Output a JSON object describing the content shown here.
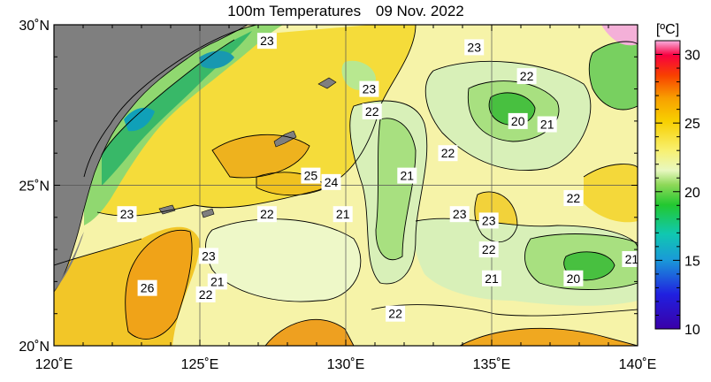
{
  "chart_data": {
    "type": "heatmap",
    "title": "100m Temperatures",
    "date": "09 Nov. 2022",
    "x_ticks": [
      "120˚E",
      "125˚E",
      "130˚E",
      "135˚E",
      "140˚E"
    ],
    "x_tick_values": [
      120,
      125,
      130,
      135,
      140
    ],
    "y_ticks": [
      "30˚N",
      "25˚N",
      "20˚N"
    ],
    "y_tick_values": [
      30,
      25,
      20
    ],
    "xlim": [
      120,
      140
    ],
    "ylim": [
      20,
      30
    ],
    "grid": true,
    "colorbar": {
      "unit_label": "[ºC]",
      "ticks": [
        "30",
        "25",
        "20",
        "15",
        "10"
      ],
      "tick_values": [
        30,
        25,
        20,
        15,
        10
      ],
      "range": [
        10,
        31
      ]
    },
    "land_color": "#808080",
    "contour_labels": [
      {
        "text": "23",
        "lon": 127.3,
        "lat": 29.5
      },
      {
        "text": "23",
        "lon": 134.4,
        "lat": 29.3
      },
      {
        "text": "22",
        "lon": 136.2,
        "lat": 28.4
      },
      {
        "text": "23",
        "lon": 130.8,
        "lat": 28.0
      },
      {
        "text": "22",
        "lon": 130.9,
        "lat": 27.3
      },
      {
        "text": "20",
        "lon": 135.9,
        "lat": 27.0
      },
      {
        "text": "21",
        "lon": 136.9,
        "lat": 26.9
      },
      {
        "text": "22",
        "lon": 133.5,
        "lat": 26.0
      },
      {
        "text": "21",
        "lon": 132.1,
        "lat": 25.3
      },
      {
        "text": "25",
        "lon": 128.8,
        "lat": 25.3
      },
      {
        "text": "24",
        "lon": 129.5,
        "lat": 25.1
      },
      {
        "text": "22",
        "lon": 137.8,
        "lat": 24.6
      },
      {
        "text": "23",
        "lon": 122.5,
        "lat": 24.1
      },
      {
        "text": "22",
        "lon": 127.3,
        "lat": 24.1
      },
      {
        "text": "21",
        "lon": 129.9,
        "lat": 24.1
      },
      {
        "text": "23",
        "lon": 133.9,
        "lat": 24.1
      },
      {
        "text": "23",
        "lon": 134.9,
        "lat": 23.9
      },
      {
        "text": "22",
        "lon": 134.9,
        "lat": 23.0
      },
      {
        "text": "23",
        "lon": 125.3,
        "lat": 22.8
      },
      {
        "text": "21",
        "lon": 139.8,
        "lat": 22.7
      },
      {
        "text": "21",
        "lon": 125.6,
        "lat": 22.0
      },
      {
        "text": "21",
        "lon": 135.0,
        "lat": 22.1
      },
      {
        "text": "26",
        "lon": 123.2,
        "lat": 21.8
      },
      {
        "text": "20",
        "lon": 137.8,
        "lat": 22.1
      },
      {
        "text": "22",
        "lon": 125.2,
        "lat": 21.6
      },
      {
        "text": "22",
        "lon": 131.7,
        "lat": 21.0
      }
    ]
  }
}
